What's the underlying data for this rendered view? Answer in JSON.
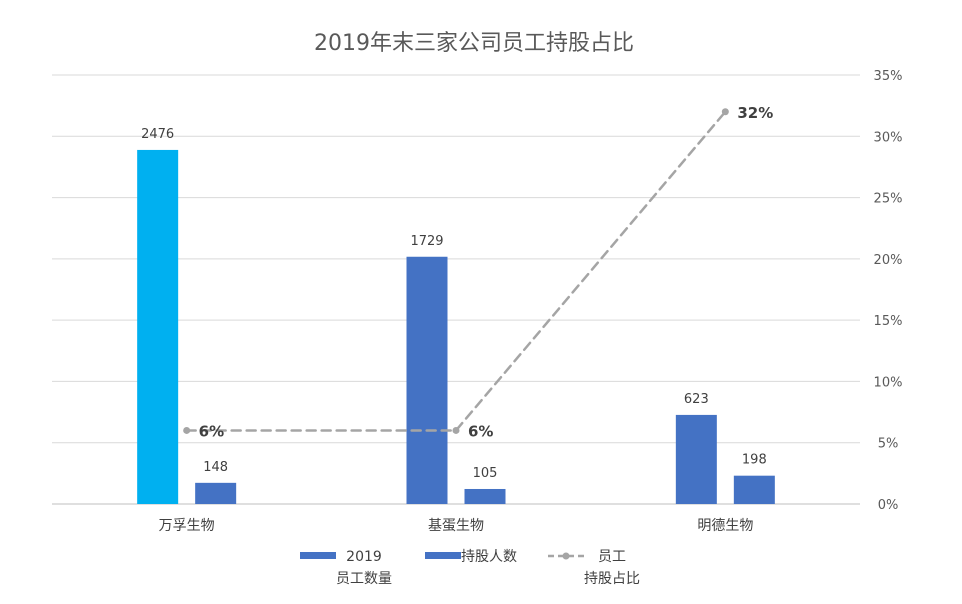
{
  "chart_data": {
    "type": "bar",
    "title": "2019年末三家公司员工持股占比",
    "categories": [
      "万孚生物",
      "基蛋生物",
      "明德生物"
    ],
    "series": [
      {
        "name": "2019\n员工数量",
        "kind": "bar",
        "axis": "left",
        "values": [
          2476,
          1729,
          623
        ],
        "labels": [
          "2476",
          "1729",
          "623"
        ],
        "color": "#4472C4",
        "highlight_color": "#00B0F0",
        "highlight_index": 0
      },
      {
        "name": "持股人数",
        "kind": "bar",
        "axis": "left",
        "values": [
          148,
          105,
          198
        ],
        "labels": [
          "148",
          "105",
          "198"
        ],
        "color": "#4472C4"
      },
      {
        "name": "员工\n持股占比",
        "kind": "line-dashed",
        "axis": "right",
        "values": [
          6,
          6,
          32
        ],
        "labels": [
          "6%",
          "6%",
          "32%"
        ],
        "color": "#A5A5A5"
      }
    ],
    "left_axis": {
      "min": 0,
      "max": 3000,
      "visible": false
    },
    "right_axis": {
      "min": 0,
      "max": 35,
      "ticks": [
        "0%",
        "5%",
        "10%",
        "15%",
        "20%",
        "25%",
        "30%",
        "35%"
      ]
    },
    "grid": true,
    "legend_position": "bottom"
  }
}
